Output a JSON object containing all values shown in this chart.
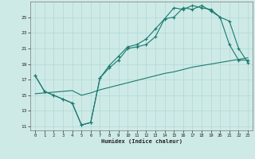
{
  "xlabel": "Humidex (Indice chaleur)",
  "bg_color": "#ceeae7",
  "grid_color": "#b0d8d4",
  "line_color": "#1a7a6e",
  "x_ticks": [
    0,
    1,
    2,
    3,
    4,
    5,
    6,
    7,
    8,
    9,
    10,
    11,
    12,
    13,
    14,
    15,
    16,
    17,
    18,
    19,
    20,
    21,
    22,
    23
  ],
  "y_ticks": [
    11,
    13,
    15,
    17,
    19,
    21,
    23,
    25
  ],
  "xlim": [
    -0.5,
    23.5
  ],
  "ylim": [
    10.5,
    27.0
  ],
  "line1_x": [
    0,
    1,
    2,
    3,
    4,
    5,
    6,
    7,
    8,
    9,
    10,
    11,
    12,
    13,
    14,
    15,
    16,
    17,
    18,
    19,
    20,
    21,
    22,
    23
  ],
  "line1_y": [
    17.5,
    15.5,
    15.0,
    14.5,
    14.0,
    11.2,
    11.5,
    17.2,
    18.5,
    19.5,
    21.0,
    21.2,
    21.5,
    22.5,
    24.8,
    26.2,
    26.0,
    26.5,
    26.2,
    26.0,
    25.0,
    21.5,
    19.5,
    19.5
  ],
  "line2_x": [
    0,
    1,
    2,
    3,
    4,
    5,
    6,
    7,
    8,
    9,
    10,
    11,
    12,
    13,
    14,
    15,
    16,
    17,
    18,
    19,
    20,
    21,
    22,
    23
  ],
  "line2_y": [
    17.5,
    15.5,
    15.0,
    14.5,
    14.0,
    11.2,
    11.5,
    17.2,
    18.8,
    20.0,
    21.2,
    21.5,
    22.2,
    23.5,
    24.8,
    25.0,
    26.2,
    26.0,
    26.5,
    25.8,
    25.0,
    24.5,
    21.0,
    19.2
  ],
  "line3_x": [
    0,
    1,
    2,
    3,
    4,
    5,
    6,
    7,
    8,
    9,
    10,
    11,
    12,
    13,
    14,
    15,
    16,
    17,
    18,
    19,
    20,
    21,
    22,
    23
  ],
  "line3_y": [
    15.2,
    15.3,
    15.4,
    15.5,
    15.6,
    15.0,
    15.3,
    15.7,
    16.0,
    16.3,
    16.6,
    16.9,
    17.2,
    17.5,
    17.8,
    18.0,
    18.3,
    18.6,
    18.8,
    19.0,
    19.2,
    19.4,
    19.6,
    19.8
  ]
}
